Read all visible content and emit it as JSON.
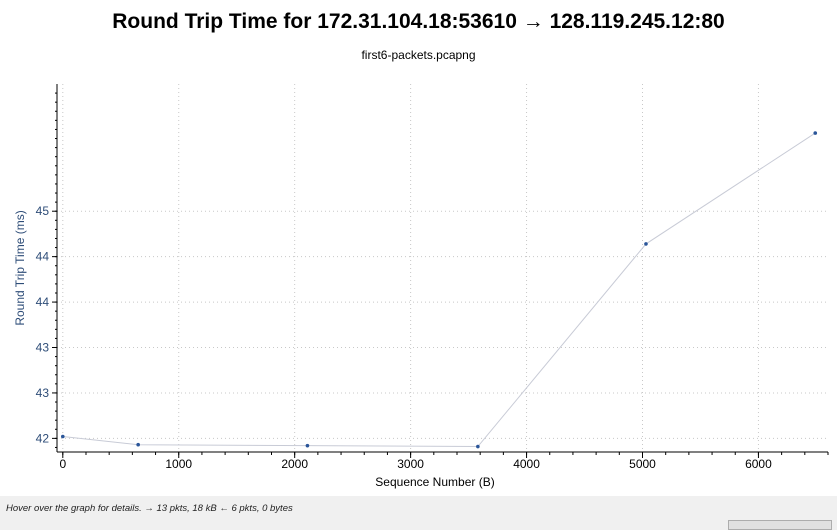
{
  "chart_data": {
    "type": "scatter",
    "title": "Round Trip Time for 172.31.104.18:53610 → 128.119.245.12:80",
    "subtitle": "first6-packets.pcapng",
    "xlabel": "Sequence Number (B)",
    "ylabel": "Round Trip Time (ms)",
    "xlim": [
      -50,
      6600
    ],
    "ylim": [
      41.85,
      45.9
    ],
    "xticks": [
      0,
      1000,
      2000,
      3000,
      4000,
      5000,
      6000
    ],
    "yticks": [
      {
        "value": 42.0,
        "label": "42"
      },
      {
        "value": 42.5,
        "label": "43"
      },
      {
        "value": 43.0,
        "label": "43"
      },
      {
        "value": 43.5,
        "label": "44"
      },
      {
        "value": 44.0,
        "label": "44"
      },
      {
        "value": 44.5,
        "label": "45"
      }
    ],
    "grid": true,
    "series": [
      {
        "x": [
          0,
          650,
          2110,
          3580,
          5030,
          6490
        ],
        "y": [
          42.02,
          41.93,
          41.92,
          41.91,
          44.14,
          45.36
        ]
      }
    ],
    "colors": {
      "line": "#c8cbd6",
      "marker": "#2a5599",
      "ylabel": "#2e4d78"
    }
  },
  "status_text": "Hover over the graph for details. → 13 pkts, 18 kB ← 6 pkts, 0 bytes"
}
